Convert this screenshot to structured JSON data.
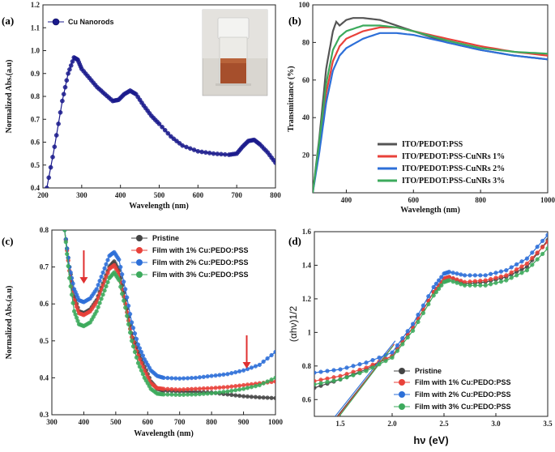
{
  "figure": {
    "panel_labels": [
      "(a)",
      "(b)",
      "(c)",
      "(d)"
    ]
  },
  "chart_data": [
    {
      "panel": "(a)",
      "type": "line",
      "title": "",
      "xlabel": "Wavelength (nm)",
      "ylabel": "Normalized Abs.(a.u)",
      "xlim": [
        200,
        800
      ],
      "ylim": [
        0.4,
        1.2
      ],
      "xticks": [
        200,
        300,
        400,
        500,
        600,
        700,
        800
      ],
      "yticks": [
        0.4,
        0.5,
        0.6,
        0.7,
        0.8,
        0.9,
        1.0,
        1.1,
        1.2
      ],
      "ytick_labels": [
        "0.4",
        "0.5",
        "0.6",
        "0.7",
        "0.8",
        "0.9",
        "1.0",
        "1.1",
        "1.2"
      ],
      "inset": "photo of a vial containing a reddish-brown Cu nanorod dispersion",
      "series": [
        {
          "name": "Cu Nanorods",
          "color": "#1a1a8c",
          "x": [
            210,
            230,
            250,
            265,
            280,
            290,
            300,
            320,
            340,
            360,
            380,
            395,
            410,
            425,
            440,
            460,
            480,
            500,
            530,
            560,
            600,
            640,
            680,
            700,
            715,
            730,
            745,
            760,
            780,
            800
          ],
          "y": [
            0.4,
            0.58,
            0.78,
            0.9,
            0.97,
            0.96,
            0.92,
            0.88,
            0.84,
            0.81,
            0.78,
            0.785,
            0.81,
            0.825,
            0.81,
            0.76,
            0.715,
            0.68,
            0.625,
            0.585,
            0.56,
            0.55,
            0.545,
            0.55,
            0.58,
            0.605,
            0.61,
            0.59,
            0.555,
            0.51
          ]
        }
      ]
    },
    {
      "panel": "(b)",
      "type": "line",
      "title": "",
      "xlabel": "Wavelength (nm)",
      "ylabel": "Transmittance (%)",
      "xlim": [
        300,
        1000
      ],
      "ylim": [
        0,
        100
      ],
      "xticks": [
        400,
        600,
        800,
        1000
      ],
      "yticks": [
        20,
        40,
        60,
        80,
        100
      ],
      "legend_location": "bottom-right",
      "series": [
        {
          "name": "ITO/PEDOT:PSS",
          "color": "#555555",
          "x": [
            300,
            320,
            340,
            360,
            370,
            380,
            400,
            420,
            450,
            500,
            600,
            700,
            800,
            900,
            1000
          ],
          "y": [
            0,
            30,
            66,
            86,
            91,
            89,
            92,
            93,
            93,
            92,
            86,
            80,
            76,
            73,
            71
          ]
        },
        {
          "name": "ITO/PEDOT:PSS-CuNRs 1%",
          "color": "#e8413a",
          "x": [
            300,
            320,
            340,
            360,
            380,
            400,
            450,
            500,
            550,
            600,
            700,
            800,
            900,
            1000
          ],
          "y": [
            0,
            25,
            53,
            70,
            78,
            82,
            86,
            88,
            88,
            86,
            82,
            78,
            75,
            73
          ]
        },
        {
          "name": "ITO/PEDOT:PSS-CuNRs 2%",
          "color": "#2d6fd8",
          "x": [
            300,
            320,
            340,
            360,
            380,
            400,
            450,
            500,
            550,
            600,
            700,
            800,
            900,
            1000
          ],
          "y": [
            0,
            22,
            48,
            65,
            73,
            77,
            82,
            85,
            85,
            84,
            80,
            76,
            73,
            71
          ]
        },
        {
          "name": "ITO/PEDOT:PSS-CuNRs 3%",
          "color": "#3caa5c",
          "x": [
            300,
            320,
            340,
            360,
            380,
            400,
            450,
            500,
            550,
            600,
            700,
            800,
            900,
            1000
          ],
          "y": [
            0,
            28,
            58,
            76,
            83,
            86,
            89,
            89,
            88,
            86,
            81,
            77,
            75,
            74
          ]
        }
      ]
    },
    {
      "panel": "(c)",
      "type": "line",
      "title": "",
      "xlabel": "Wavelength (nm)",
      "ylabel": "Normalized Abs.(a.u)",
      "xlim": [
        300,
        1000
      ],
      "ylim": [
        0.3,
        0.8
      ],
      "xticks": [
        300,
        400,
        500,
        600,
        700,
        800,
        900,
        1000
      ],
      "yticks": [
        0.3,
        0.4,
        0.5,
        0.6,
        0.7,
        0.8
      ],
      "legend_location": "top-right",
      "annotations": [
        {
          "type": "arrow",
          "x": 400,
          "y_from": 0.745,
          "y_to": 0.655,
          "color": "#e03030"
        },
        {
          "type": "arrow",
          "x": 910,
          "y_from": 0.515,
          "y_to": 0.425,
          "color": "#e03030"
        }
      ],
      "series": [
        {
          "name": "Pristine",
          "color": "#444444",
          "x": [
            340,
            355,
            370,
            385,
            400,
            420,
            440,
            460,
            480,
            495,
            510,
            530,
            550,
            570,
            590,
            610,
            630,
            650,
            700,
            750,
            800,
            850,
            900,
            950,
            1000
          ],
          "y": [
            0.8,
            0.7,
            0.62,
            0.58,
            0.575,
            0.585,
            0.61,
            0.655,
            0.7,
            0.715,
            0.69,
            0.61,
            0.52,
            0.47,
            0.43,
            0.39,
            0.37,
            0.365,
            0.363,
            0.362,
            0.36,
            0.355,
            0.35,
            0.347,
            0.345
          ]
        },
        {
          "name": "Film with 1% Cu:PEDO:PSS",
          "color": "#e8413a",
          "x": [
            340,
            355,
            370,
            385,
            400,
            420,
            440,
            460,
            480,
            495,
            510,
            530,
            550,
            570,
            590,
            610,
            630,
            650,
            700,
            750,
            800,
            850,
            900,
            950,
            1000
          ],
          "y": [
            0.8,
            0.69,
            0.61,
            0.575,
            0.57,
            0.58,
            0.605,
            0.65,
            0.695,
            0.705,
            0.68,
            0.6,
            0.51,
            0.46,
            0.42,
            0.385,
            0.372,
            0.37,
            0.368,
            0.37,
            0.372,
            0.375,
            0.38,
            0.385,
            0.39
          ]
        },
        {
          "name": "Film with 2% Cu:PEDO:PSS",
          "color": "#2d6fd8",
          "x": [
            340,
            355,
            370,
            385,
            400,
            420,
            440,
            460,
            480,
            495,
            510,
            530,
            550,
            570,
            590,
            610,
            630,
            650,
            700,
            750,
            800,
            850,
            900,
            950,
            1000
          ],
          "y": [
            0.8,
            0.7,
            0.64,
            0.61,
            0.605,
            0.615,
            0.64,
            0.685,
            0.73,
            0.74,
            0.72,
            0.64,
            0.55,
            0.49,
            0.45,
            0.42,
            0.405,
            0.4,
            0.398,
            0.4,
            0.405,
            0.41,
            0.42,
            0.435,
            0.47
          ]
        },
        {
          "name": "Film with 3% Cu:PEDO:PSS",
          "color": "#3caa5c",
          "x": [
            340,
            355,
            370,
            385,
            400,
            420,
            440,
            460,
            480,
            495,
            510,
            530,
            550,
            570,
            590,
            610,
            630,
            650,
            700,
            750,
            800,
            850,
            900,
            950,
            1000
          ],
          "y": [
            0.8,
            0.67,
            0.58,
            0.545,
            0.54,
            0.55,
            0.58,
            0.625,
            0.67,
            0.685,
            0.665,
            0.59,
            0.5,
            0.44,
            0.4,
            0.37,
            0.357,
            0.355,
            0.354,
            0.355,
            0.358,
            0.363,
            0.37,
            0.38,
            0.4
          ]
        }
      ]
    },
    {
      "panel": "(d)",
      "type": "line",
      "title": "",
      "xlabel": "hν (eV)",
      "ylabel": "(αhν)1/2",
      "xlim": [
        1.25,
        3.5
      ],
      "ylim": [
        0.5,
        1.6
      ],
      "xticks": [
        1.5,
        2.0,
        2.5,
        3.0,
        3.5
      ],
      "yticks": [
        0.6,
        0.8,
        1.0,
        1.2,
        1.4,
        1.6
      ],
      "legend_location": "bottom-center",
      "series": [
        {
          "name": "Pristine",
          "color": "#444444",
          "x": [
            1.25,
            1.5,
            1.75,
            2.0,
            2.2,
            2.4,
            2.5,
            2.55,
            2.7,
            2.9,
            3.1,
            3.3,
            3.5
          ],
          "y": [
            0.67,
            0.72,
            0.78,
            0.86,
            1.03,
            1.24,
            1.32,
            1.33,
            1.29,
            1.3,
            1.33,
            1.39,
            1.55
          ],
          "tangent": {
            "x": [
              1.47,
              2.02
            ],
            "y": [
              0.5,
              0.93
            ]
          }
        },
        {
          "name": "Film with 1% Cu:PEDO:PSS",
          "color": "#e8413a",
          "x": [
            1.25,
            1.5,
            1.75,
            2.0,
            2.2,
            2.4,
            2.5,
            2.55,
            2.7,
            2.9,
            3.1,
            3.3,
            3.5
          ],
          "y": [
            0.71,
            0.74,
            0.79,
            0.86,
            1.03,
            1.24,
            1.32,
            1.33,
            1.3,
            1.31,
            1.34,
            1.41,
            1.54
          ],
          "tangent": {
            "x": [
              1.48,
              2.02
            ],
            "y": [
              0.5,
              0.93
            ]
          }
        },
        {
          "name": "Film with 2% Cu:PEDO:PSS",
          "color": "#2d6fd8",
          "x": [
            1.25,
            1.5,
            1.75,
            2.0,
            2.2,
            2.4,
            2.5,
            2.55,
            2.7,
            2.9,
            3.1,
            3.3,
            3.5
          ],
          "y": [
            0.76,
            0.78,
            0.82,
            0.88,
            1.05,
            1.27,
            1.35,
            1.36,
            1.34,
            1.34,
            1.37,
            1.44,
            1.58
          ],
          "tangent": {
            "x": [
              1.45,
              2.03
            ],
            "y": [
              0.5,
              0.95
            ]
          }
        },
        {
          "name": "Film with 3% Cu:PEDO:PSS",
          "color": "#3caa5c",
          "x": [
            1.25,
            1.5,
            1.75,
            2.0,
            2.2,
            2.4,
            2.5,
            2.55,
            2.7,
            2.9,
            3.1,
            3.3,
            3.5
          ],
          "y": [
            0.69,
            0.72,
            0.77,
            0.85,
            1.01,
            1.22,
            1.3,
            1.31,
            1.28,
            1.28,
            1.31,
            1.37,
            1.5
          ],
          "tangent": {
            "x": [
              1.49,
              2.01
            ],
            "y": [
              0.5,
              0.92
            ]
          }
        }
      ]
    }
  ]
}
